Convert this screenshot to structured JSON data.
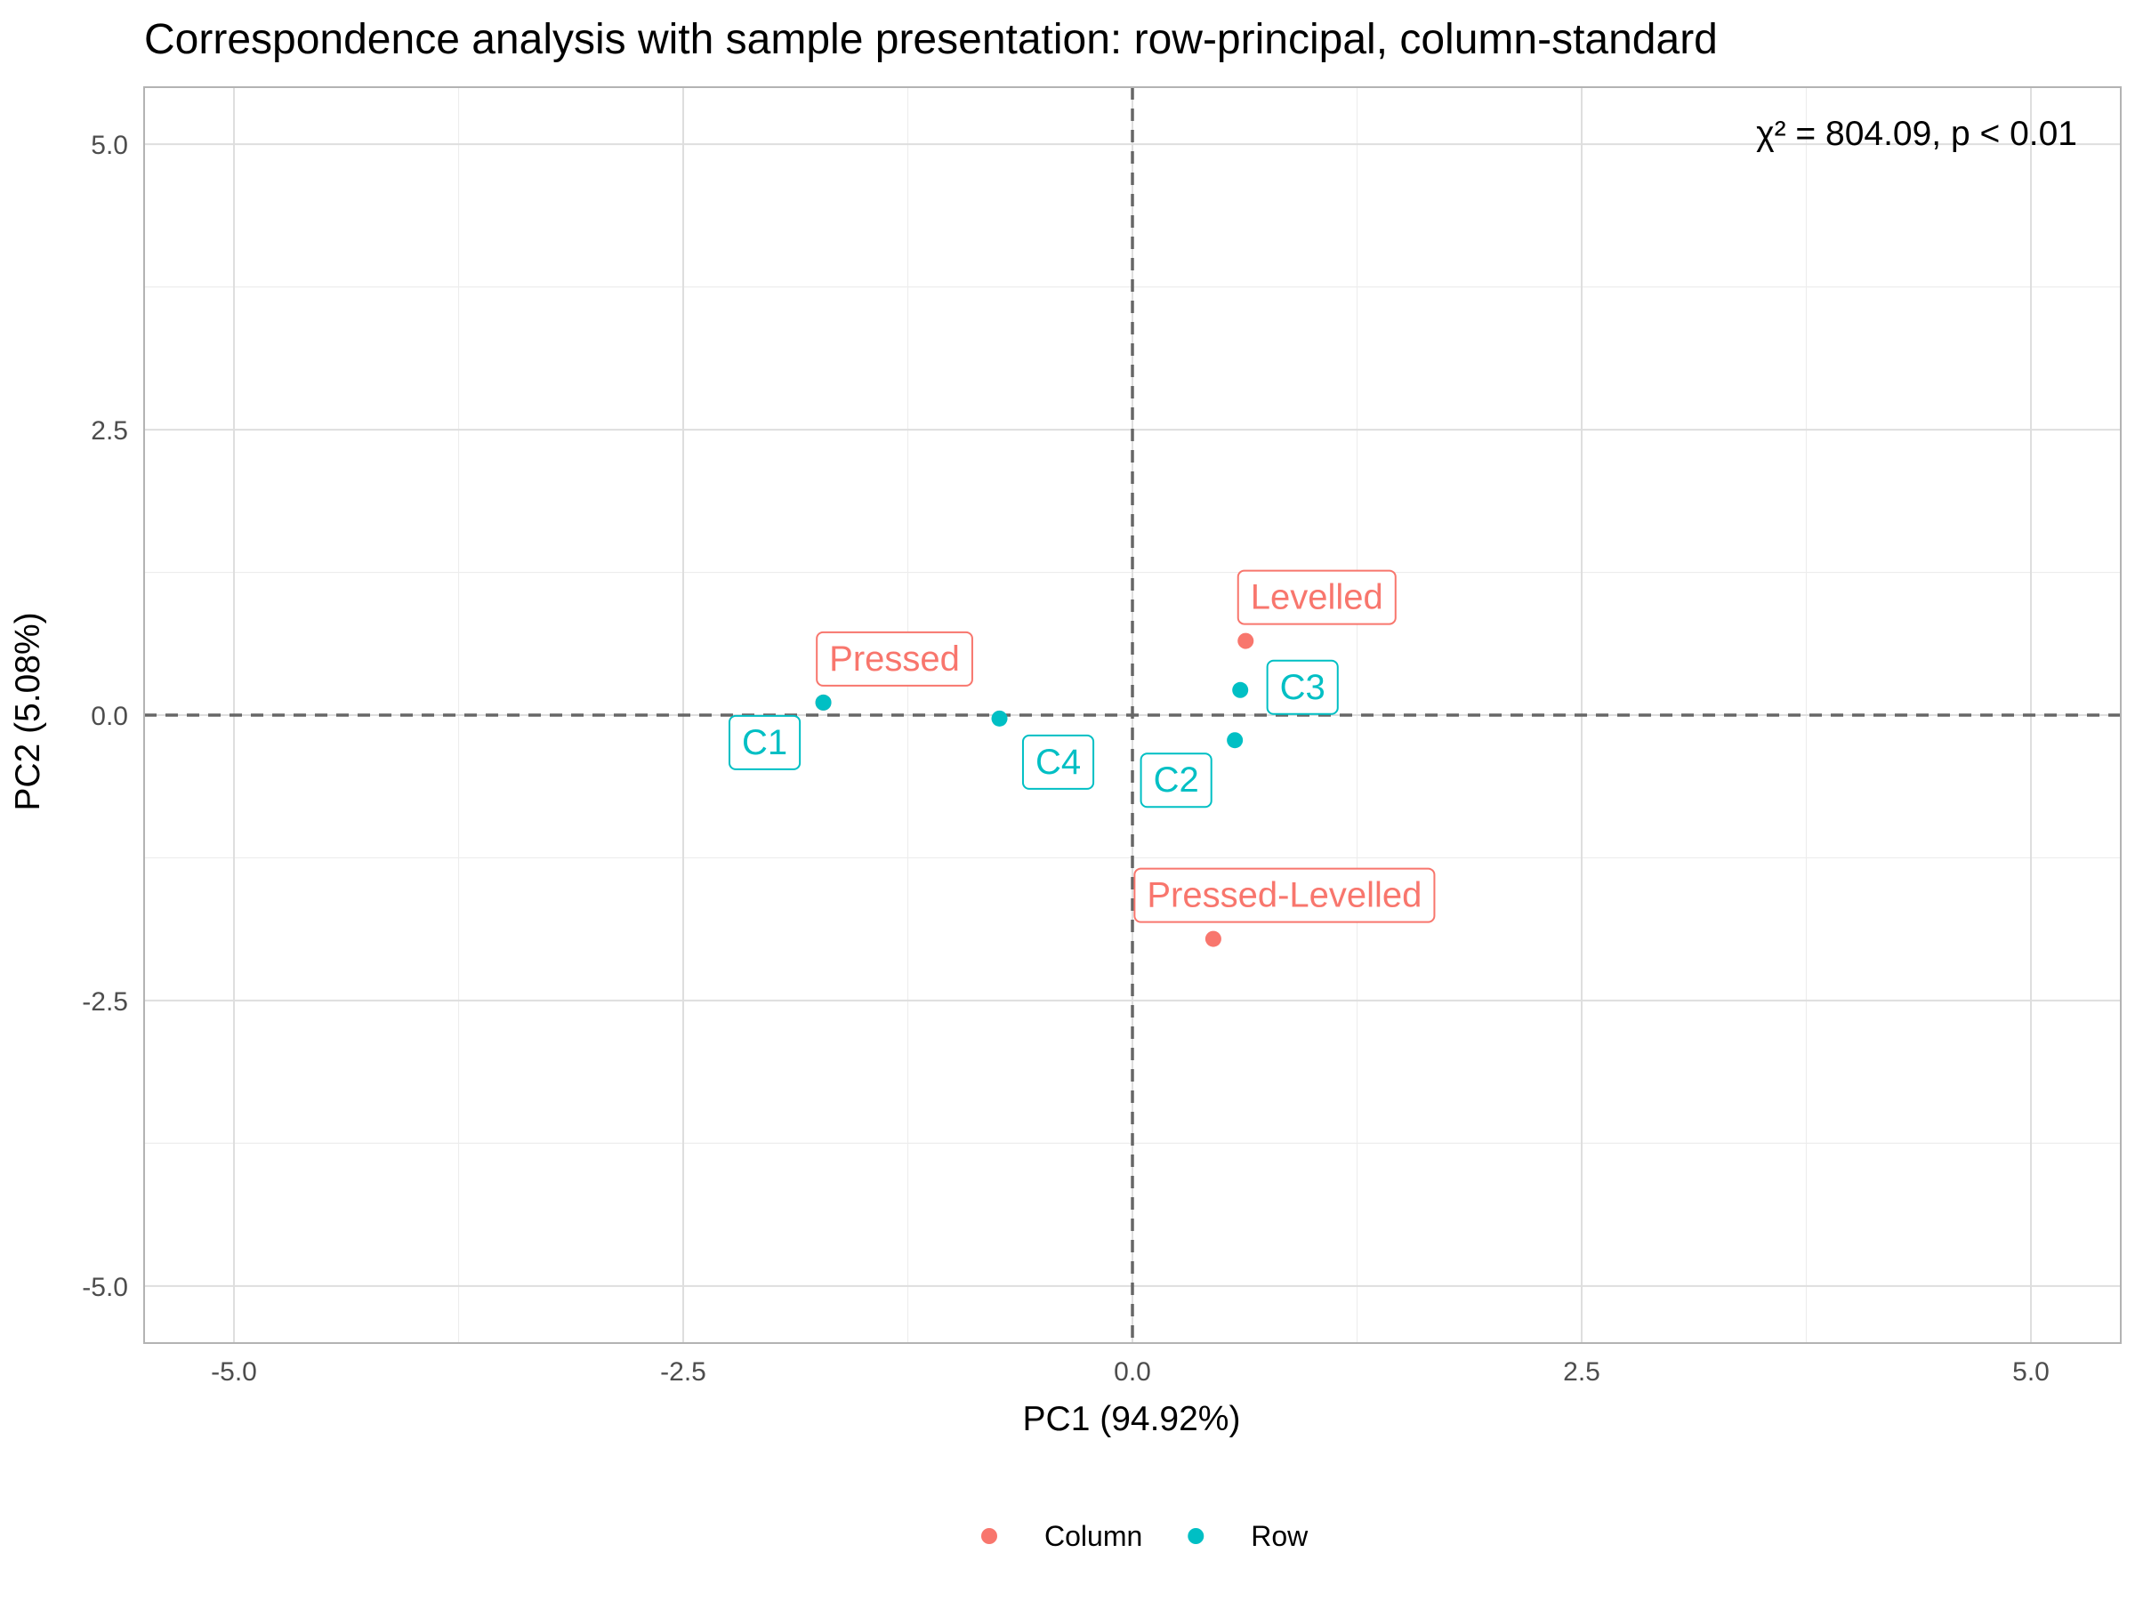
{
  "chart_data": {
    "type": "scatter",
    "title": "Correspondence analysis with sample presentation: row-principal, column-standard",
    "xlabel": "PC1 (94.92%)",
    "ylabel": "PC2 (5.08%)",
    "xlim": [
      -5.5,
      5.5
    ],
    "ylim": [
      -5.5,
      5.5
    ],
    "x_ticks": [
      -5.0,
      -2.5,
      0.0,
      2.5,
      5.0
    ],
    "x_tick_labels": [
      "-5.0",
      "-2.5",
      "0.0",
      "2.5",
      "5.0"
    ],
    "y_ticks": [
      -5.0,
      -2.5,
      0.0,
      2.5,
      5.0
    ],
    "y_tick_labels": [
      "-5.0",
      "-2.5",
      "0.0",
      "2.5",
      "5.0"
    ],
    "grid": true,
    "reference_lines": {
      "x": 0,
      "y": 0,
      "style": "dashed"
    },
    "annotation": "χ² = 804.09, p < 0.01",
    "legend_position": "bottom",
    "series": [
      {
        "name": "Column",
        "color": "#F8766D",
        "points": [
          {
            "label": "Pressed",
            "x": -1.72,
            "y": 0.11
          },
          {
            "label": "Levelled",
            "x": 0.63,
            "y": 0.65
          },
          {
            "label": "Pressed-Levelled",
            "x": 0.45,
            "y": -1.96
          }
        ]
      },
      {
        "name": "Row",
        "color": "#00BFC4",
        "points": [
          {
            "label": "C1",
            "x": -1.72,
            "y": 0.11
          },
          {
            "label": "C4",
            "x": -0.74,
            "y": -0.03
          },
          {
            "label": "C2",
            "x": 0.57,
            "y": -0.22
          },
          {
            "label": "C3",
            "x": 0.6,
            "y": 0.22
          }
        ]
      }
    ]
  }
}
